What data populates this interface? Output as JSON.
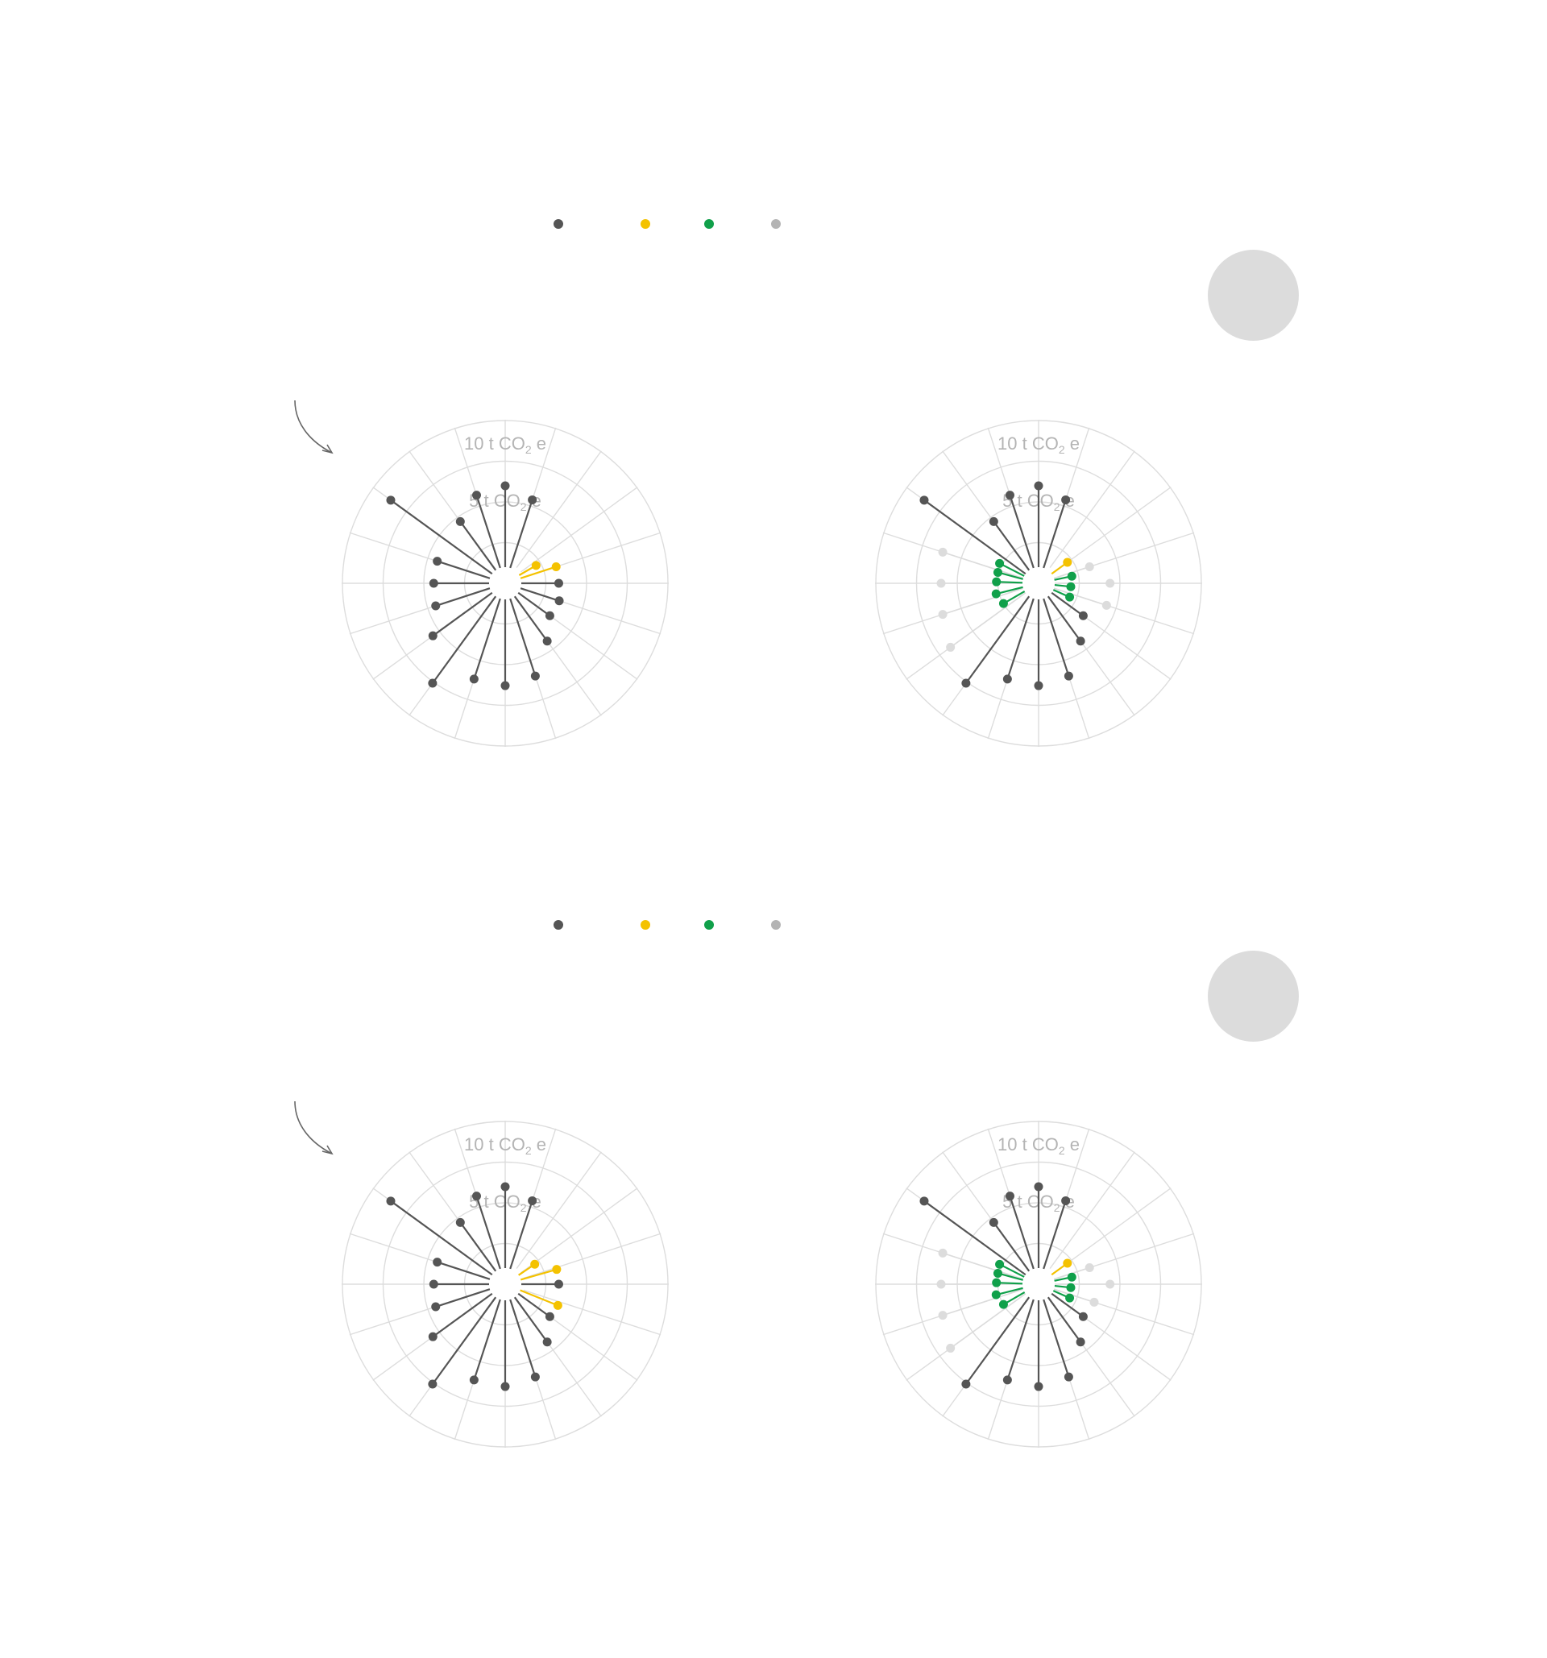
{
  "colors": {
    "base": "#555555",
    "savings": "#f4c200",
    "improved": "#10a04a",
    "ghost": "#b4b4b4",
    "ghost_light": "#dcdcdc",
    "grid": "#dddddd",
    "badge": "#dcdcdc",
    "arrow": "#666666"
  },
  "legend": {
    "items": [
      {
        "color": "#555555",
        "icon": "gray-dot-icon"
      },
      {
        "color": "#f4c200",
        "icon": "yellow-dot-icon"
      },
      {
        "color": "#10a04a",
        "icon": "green-dot-icon"
      },
      {
        "color": "#b4b4b4",
        "icon": "light-gray-dot-icon"
      }
    ]
  },
  "chart_data": [
    {
      "type": "radial-lollipop",
      "panel": 1,
      "view": "before",
      "spokes": 20,
      "axis_labels": [
        "5 t CO2 e",
        "10 t CO2 e"
      ],
      "rmax": 10,
      "points": [
        {
          "angle": 0,
          "value": 5.0,
          "color": "base"
        },
        {
          "angle": 18,
          "value": 4.4,
          "color": "base"
        },
        {
          "angle": 60,
          "value": 1.2,
          "color": "savings"
        },
        {
          "angle": 72,
          "value": 2.3,
          "color": "savings"
        },
        {
          "angle": 90,
          "value": 2.3,
          "color": "base"
        },
        {
          "angle": 108,
          "value": 2.5,
          "color": "base"
        },
        {
          "angle": 126,
          "value": 2.4,
          "color": "base"
        },
        {
          "angle": 144,
          "value": 3.4,
          "color": "base"
        },
        {
          "angle": 162,
          "value": 5.0,
          "color": "base"
        },
        {
          "angle": 180,
          "value": 5.3,
          "color": "base"
        },
        {
          "angle": 198,
          "value": 5.2,
          "color": "base"
        },
        {
          "angle": 216,
          "value": 6.6,
          "color": "base"
        },
        {
          "angle": 234,
          "value": 4.5,
          "color": "base"
        },
        {
          "angle": 252,
          "value": 3.5,
          "color": "base"
        },
        {
          "angle": 270,
          "value": 3.4,
          "color": "base"
        },
        {
          "angle": 288,
          "value": 3.4,
          "color": "base"
        },
        {
          "angle": 306,
          "value": 7.7,
          "color": "base"
        },
        {
          "angle": 324,
          "value": 3.7,
          "color": "base"
        },
        {
          "angle": 342,
          "value": 4.7,
          "color": "base"
        }
      ]
    },
    {
      "type": "radial-lollipop",
      "panel": 1,
      "view": "after",
      "spokes": 20,
      "axis_labels": [
        "5 t CO2 e",
        "10 t CO2 e"
      ],
      "rmax": 10,
      "points": [
        {
          "angle": 0,
          "value": 5.0,
          "color": "base"
        },
        {
          "angle": 18,
          "value": 4.4,
          "color": "base"
        },
        {
          "angle": 54,
          "value": 1.2,
          "color": "savings"
        },
        {
          "angle": 72,
          "value": 2.3,
          "color": "ghost_light"
        },
        {
          "angle": 78,
          "value": 1.1,
          "color": "improved"
        },
        {
          "angle": 90,
          "value": 3.4,
          "color": "ghost_light"
        },
        {
          "angle": 96,
          "value": 1.0,
          "color": "improved"
        },
        {
          "angle": 108,
          "value": 3.4,
          "color": "ghost_light"
        },
        {
          "angle": 114,
          "value": 1.1,
          "color": "improved"
        },
        {
          "angle": 126,
          "value": 2.4,
          "color": "base"
        },
        {
          "angle": 144,
          "value": 3.4,
          "color": "base"
        },
        {
          "angle": 162,
          "value": 5.0,
          "color": "base"
        },
        {
          "angle": 180,
          "value": 5.3,
          "color": "base"
        },
        {
          "angle": 198,
          "value": 5.2,
          "color": "base"
        },
        {
          "angle": 216,
          "value": 6.6,
          "color": "base"
        },
        {
          "angle": 234,
          "value": 5.7,
          "color": "ghost_light"
        },
        {
          "angle": 240,
          "value": 1.5,
          "color": "improved"
        },
        {
          "angle": 252,
          "value": 5.2,
          "color": "ghost_light"
        },
        {
          "angle": 256,
          "value": 1.7,
          "color": "improved"
        },
        {
          "angle": 270,
          "value": 5.0,
          "color": "ghost_light"
        },
        {
          "angle": 272,
          "value": 1.6,
          "color": "improved"
        },
        {
          "angle": 288,
          "value": 5.2,
          "color": "ghost_light"
        },
        {
          "angle": 285,
          "value": 1.6,
          "color": "improved"
        },
        {
          "angle": 297,
          "value": 1.7,
          "color": "improved"
        },
        {
          "angle": 306,
          "value": 7.7,
          "color": "base"
        },
        {
          "angle": 324,
          "value": 3.7,
          "color": "base"
        },
        {
          "angle": 342,
          "value": 4.7,
          "color": "base"
        }
      ]
    },
    {
      "type": "radial-lollipop",
      "panel": 2,
      "view": "before",
      "spokes": 20,
      "axis_labels": [
        "5 t CO2 e",
        "10 t CO2 e"
      ],
      "rmax": 10,
      "points": [
        {
          "angle": 0,
          "value": 5.0,
          "color": "base"
        },
        {
          "angle": 18,
          "value": 4.4,
          "color": "base"
        },
        {
          "angle": 56,
          "value": 1.2,
          "color": "savings"
        },
        {
          "angle": 74,
          "value": 2.3,
          "color": "savings"
        },
        {
          "angle": 90,
          "value": 2.3,
          "color": "base"
        },
        {
          "angle": 112,
          "value": 2.5,
          "color": "savings"
        },
        {
          "angle": 126,
          "value": 2.4,
          "color": "base"
        },
        {
          "angle": 144,
          "value": 3.4,
          "color": "base"
        },
        {
          "angle": 162,
          "value": 5.0,
          "color": "base"
        },
        {
          "angle": 180,
          "value": 5.3,
          "color": "base"
        },
        {
          "angle": 198,
          "value": 5.2,
          "color": "base"
        },
        {
          "angle": 216,
          "value": 6.6,
          "color": "base"
        },
        {
          "angle": 234,
          "value": 4.5,
          "color": "base"
        },
        {
          "angle": 252,
          "value": 3.5,
          "color": "base"
        },
        {
          "angle": 270,
          "value": 3.4,
          "color": "base"
        },
        {
          "angle": 288,
          "value": 3.4,
          "color": "base"
        },
        {
          "angle": 306,
          "value": 7.7,
          "color": "base"
        },
        {
          "angle": 324,
          "value": 3.7,
          "color": "base"
        },
        {
          "angle": 342,
          "value": 4.7,
          "color": "base"
        }
      ]
    },
    {
      "type": "radial-lollipop",
      "panel": 2,
      "view": "after",
      "spokes": 20,
      "axis_labels": [
        "5 t CO2 e",
        "10 t CO2 e"
      ],
      "rmax": 10,
      "points": [
        {
          "angle": 0,
          "value": 5.0,
          "color": "base"
        },
        {
          "angle": 18,
          "value": 4.4,
          "color": "base"
        },
        {
          "angle": 54,
          "value": 1.2,
          "color": "savings"
        },
        {
          "angle": 72,
          "value": 2.3,
          "color": "ghost_light"
        },
        {
          "angle": 78,
          "value": 1.1,
          "color": "improved"
        },
        {
          "angle": 90,
          "value": 3.4,
          "color": "ghost_light"
        },
        {
          "angle": 96,
          "value": 1.0,
          "color": "improved"
        },
        {
          "angle": 108,
          "value": 2.6,
          "color": "ghost_light"
        },
        {
          "angle": 114,
          "value": 1.1,
          "color": "improved"
        },
        {
          "angle": 126,
          "value": 2.4,
          "color": "base"
        },
        {
          "angle": 144,
          "value": 3.4,
          "color": "base"
        },
        {
          "angle": 162,
          "value": 5.0,
          "color": "base"
        },
        {
          "angle": 180,
          "value": 5.3,
          "color": "base"
        },
        {
          "angle": 198,
          "value": 5.2,
          "color": "base"
        },
        {
          "angle": 216,
          "value": 6.6,
          "color": "base"
        },
        {
          "angle": 234,
          "value": 5.7,
          "color": "ghost_light"
        },
        {
          "angle": 240,
          "value": 1.5,
          "color": "improved"
        },
        {
          "angle": 252,
          "value": 5.2,
          "color": "ghost_light"
        },
        {
          "angle": 256,
          "value": 1.7,
          "color": "improved"
        },
        {
          "angle": 270,
          "value": 5.0,
          "color": "ghost_light"
        },
        {
          "angle": 272,
          "value": 1.6,
          "color": "improved"
        },
        {
          "angle": 288,
          "value": 5.2,
          "color": "ghost_light"
        },
        {
          "angle": 285,
          "value": 1.6,
          "color": "improved"
        },
        {
          "angle": 297,
          "value": 1.7,
          "color": "improved"
        },
        {
          "angle": 306,
          "value": 7.7,
          "color": "base"
        },
        {
          "angle": 324,
          "value": 3.7,
          "color": "base"
        },
        {
          "angle": 342,
          "value": 4.7,
          "color": "base"
        }
      ]
    }
  ]
}
